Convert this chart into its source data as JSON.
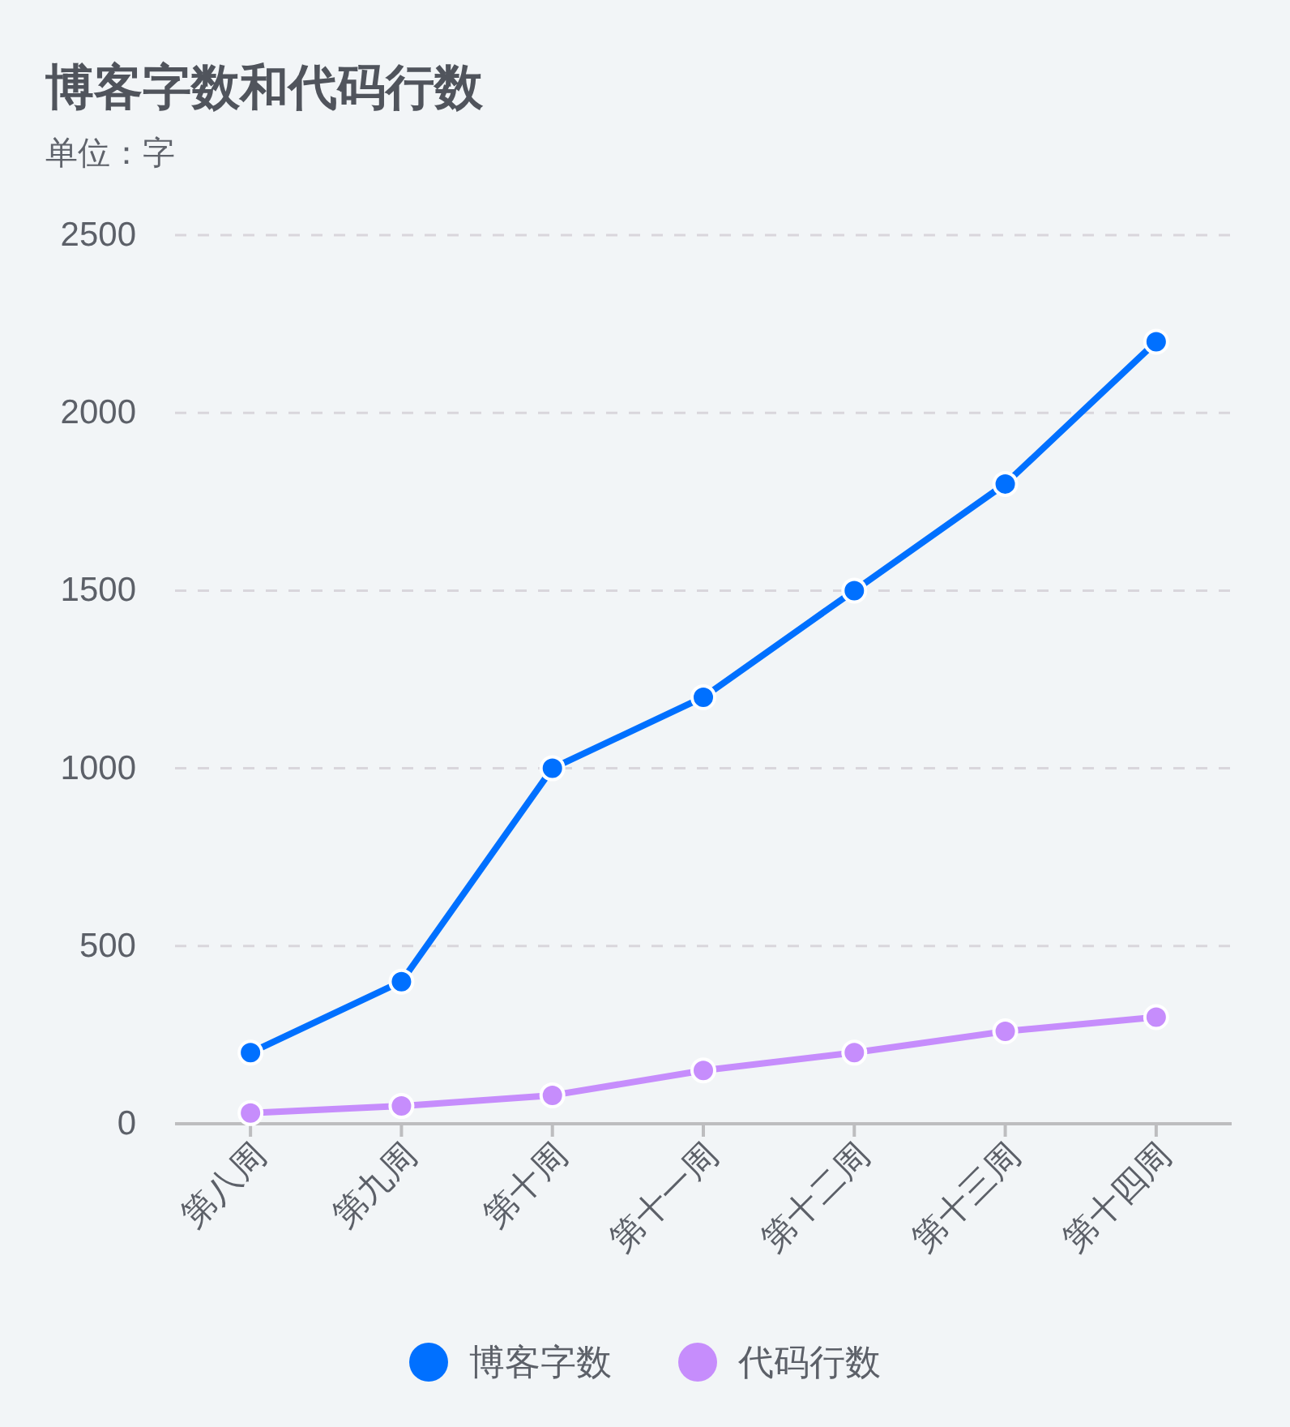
{
  "chart_data": {
    "type": "line",
    "title": "博客字数和代码行数",
    "subtitle": "单位：字",
    "categories": [
      "第八周",
      "第九周",
      "第十周",
      "第十一周",
      "第十二周",
      "第十三周",
      "第十四周"
    ],
    "series": [
      {
        "name": "博客字数",
        "color": "#0070ff",
        "values": [
          200,
          400,
          1000,
          1200,
          1500,
          1800,
          2200
        ]
      },
      {
        "name": "代码行数",
        "color": "#c68dfc",
        "values": [
          30,
          50,
          80,
          150,
          200,
          260,
          300
        ]
      }
    ],
    "ylim": [
      0,
      2500
    ],
    "yticks": [
      0,
      500,
      1000,
      1500,
      2000,
      2500
    ],
    "grid": "y",
    "legend": "bottom",
    "marker": "circle",
    "line_style": "solid"
  }
}
